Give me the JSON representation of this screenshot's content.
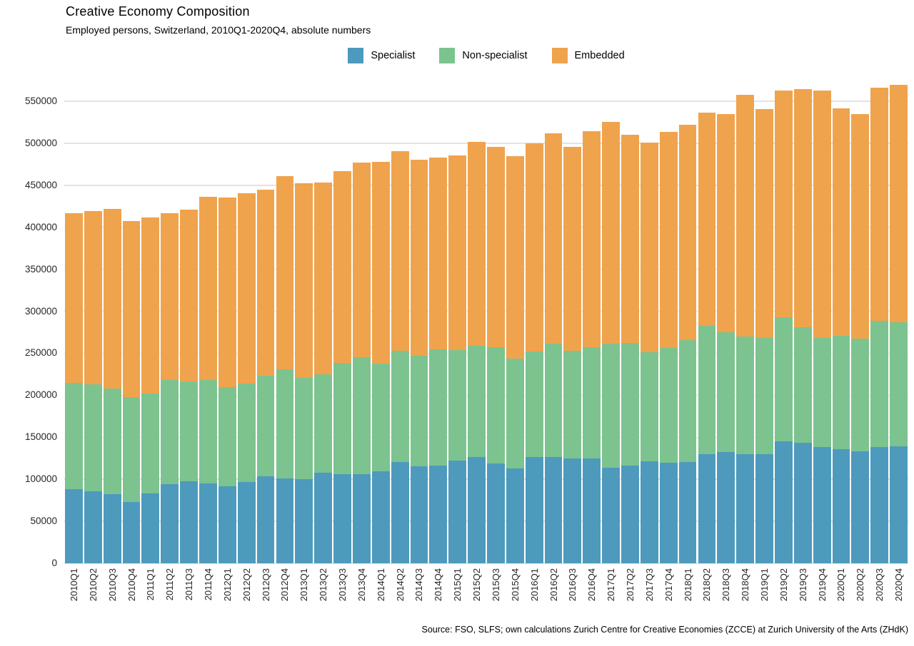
{
  "title": "Creative Economy Composition",
  "subtitle": "Employed persons, Switzerland, 2010Q1-2020Q4, absolute numbers",
  "source": "Source: FSO, SLFS; own calculations Zurich Centre for Creative Economies (ZCCE) at Zurich University of the Arts (ZHdK)",
  "colors": {
    "specialist": "#4d9abd",
    "non_specialist": "#7cc38f",
    "embedded": "#f0a34d",
    "gridline": "#e3e3e3"
  },
  "legend": [
    {
      "label": "Specialist",
      "color": "#4d9abd"
    },
    {
      "label": "Non-specialist",
      "color": "#7cc38f"
    },
    {
      "label": "Embedded",
      "color": "#f0a34d"
    }
  ],
  "chart_data": {
    "type": "bar",
    "stacked": true,
    "title": "Creative Economy Composition",
    "subtitle": "Employed persons, Switzerland, 2010Q1-2020Q4, absolute numbers",
    "xlabel": "",
    "ylabel": "",
    "ylim": [
      0,
      575000
    ],
    "yticks": [
      0,
      50000,
      100000,
      150000,
      200000,
      250000,
      300000,
      350000,
      400000,
      450000,
      500000,
      550000
    ],
    "grid": true,
    "legend_position": "top",
    "categories": [
      "2010Q1",
      "2010Q2",
      "2010Q3",
      "2010Q4",
      "2011Q1",
      "2011Q2",
      "2011Q3",
      "2011Q4",
      "2012Q1",
      "2012Q2",
      "2012Q3",
      "2012Q4",
      "2013Q1",
      "2013Q2",
      "2013Q3",
      "2013Q4",
      "2014Q1",
      "2014Q2",
      "2014Q3",
      "2014Q4",
      "2015Q1",
      "2015Q2",
      "2015Q3",
      "2015Q4",
      "2016Q1",
      "2016Q2",
      "2016Q3",
      "2016Q4",
      "2017Q1",
      "2017Q2",
      "2017Q3",
      "2017Q4",
      "2018Q1",
      "2018Q2",
      "2018Q3",
      "2018Q4",
      "2019Q1",
      "2019Q2",
      "2019Q3",
      "2019Q4",
      "2020Q1",
      "2020Q2",
      "2020Q3",
      "2020Q4"
    ],
    "series": [
      {
        "name": "Specialist",
        "color": "#4d9abd",
        "values": [
          88000,
          86000,
          82000,
          73000,
          83000,
          94000,
          97500,
          95000,
          92000,
          97000,
          103500,
          101000,
          100500,
          107500,
          106000,
          106500,
          109500,
          120500,
          115500,
          116500,
          122000,
          126500,
          119000,
          113000,
          126500,
          126500,
          125000,
          124500,
          114000,
          116500,
          121000,
          119500,
          120500,
          129500,
          132500,
          130000,
          129500,
          145000,
          143500,
          138500,
          136000,
          133000,
          138000,
          139000
        ]
      },
      {
        "name": "Non-specialist",
        "color": "#7cc38f",
        "values": [
          126500,
          127000,
          126000,
          125000,
          119000,
          124000,
          119000,
          123500,
          118000,
          116500,
          120000,
          129500,
          120000,
          117500,
          132500,
          139000,
          128000,
          132500,
          131500,
          138000,
          132000,
          132500,
          138000,
          131000,
          125500,
          134500,
          128000,
          132500,
          147500,
          146000,
          130000,
          136500,
          145500,
          153000,
          142500,
          139500,
          138500,
          148000,
          137500,
          129500,
          135000,
          134500,
          150500,
          148000
        ]
      },
      {
        "name": "Embedded",
        "color": "#f0a34d",
        "values": [
          202500,
          206500,
          213500,
          209000,
          210000,
          199000,
          204500,
          218000,
          225000,
          227000,
          221000,
          230500,
          232000,
          228500,
          228500,
          231500,
          240500,
          238000,
          233500,
          228500,
          231500,
          243000,
          239000,
          240500,
          247500,
          251000,
          242500,
          257500,
          264000,
          248000,
          250000,
          257500,
          256000,
          253500,
          259500,
          288000,
          273000,
          270000,
          283500,
          294500,
          270500,
          267000,
          278000,
          282500
        ]
      }
    ]
  }
}
